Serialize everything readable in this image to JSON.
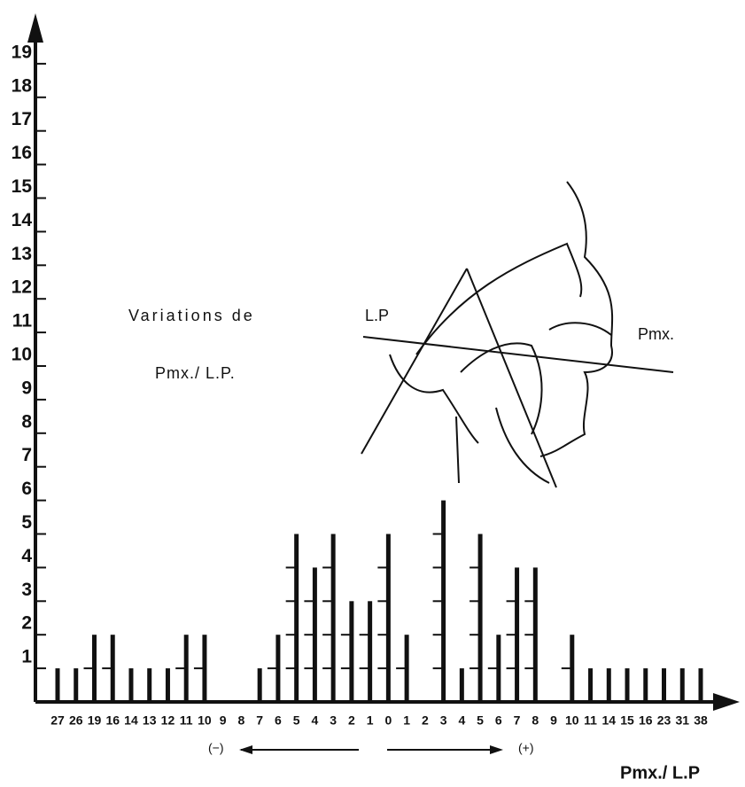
{
  "chart_data": {
    "type": "bar",
    "annotations": {
      "title_line1": "Variations de",
      "title_line2": "Pmx./ L.P.",
      "lp_label": "L.P",
      "pmx_label": "Pmx.",
      "negative": "(−)",
      "positive": "(+)"
    },
    "x_label": "Pmx./ L.P",
    "categories": [
      27,
      26,
      19,
      16,
      14,
      13,
      12,
      11,
      10,
      9,
      8,
      7,
      6,
      5,
      4,
      3,
      2,
      1,
      0,
      1,
      2,
      3,
      4,
      5,
      6,
      7,
      8,
      9,
      10,
      11,
      14,
      15,
      16,
      23,
      31,
      38
    ],
    "values": [
      1,
      1,
      2,
      2,
      1,
      1,
      1,
      2,
      2,
      0,
      0,
      1,
      2,
      5,
      4,
      5,
      3,
      3,
      5,
      2,
      0,
      6,
      1,
      5,
      2,
      4,
      4,
      0,
      2,
      1,
      1,
      1,
      1,
      1,
      1,
      1
    ],
    "color": "#111111",
    "ylim": [
      0,
      20
    ],
    "yticks": [
      1,
      2,
      3,
      4,
      5,
      6,
      7,
      8,
      9,
      10,
      11,
      12,
      13,
      14,
      15,
      16,
      17,
      18,
      19
    ]
  }
}
